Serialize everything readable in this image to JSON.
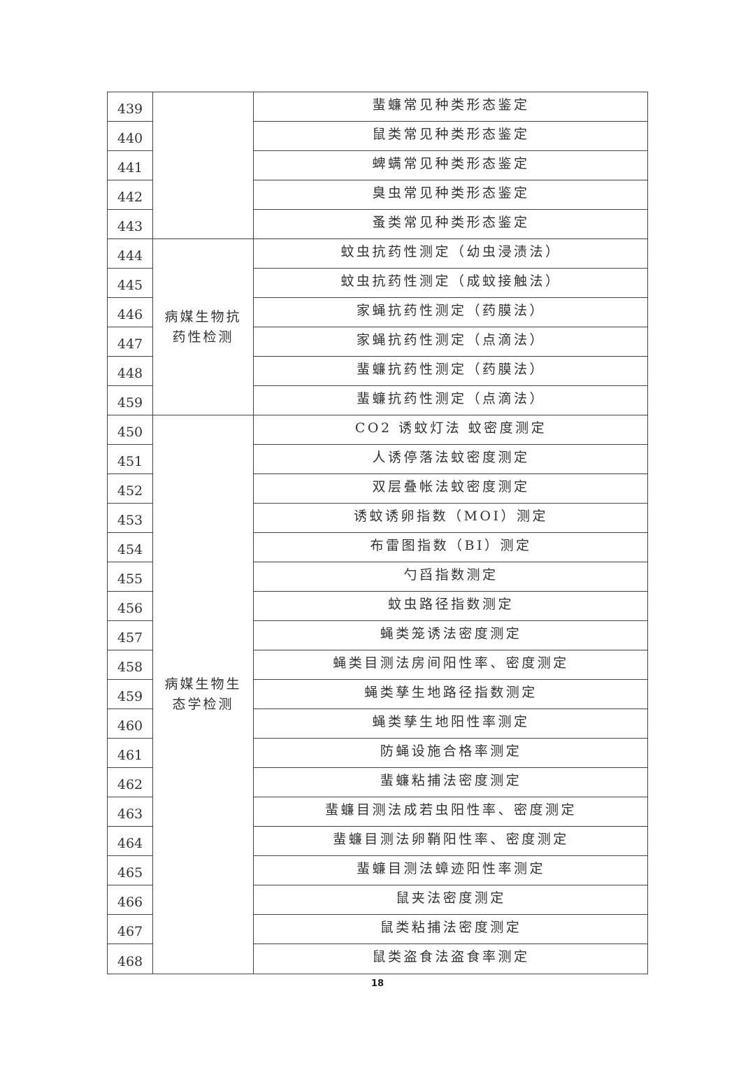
{
  "table": {
    "categories": [
      {
        "label": "",
        "rows": 5
      },
      {
        "label": "病媒生物抗药性检测",
        "rows": 6
      },
      {
        "label": "病媒生物生态学检测",
        "rows": 19
      }
    ],
    "rows": [
      {
        "no": "439",
        "item": "蜚蠊常见种类形态鉴定"
      },
      {
        "no": "440",
        "item": "鼠类常见种类形态鉴定"
      },
      {
        "no": "441",
        "item": "蜱螨常见种类形态鉴定"
      },
      {
        "no": "442",
        "item": "臭虫常见种类形态鉴定"
      },
      {
        "no": "443",
        "item": "蚤类常见种类形态鉴定"
      },
      {
        "no": "444",
        "item": "蚊虫抗药性测定（幼虫浸渍法）"
      },
      {
        "no": "445",
        "item": "蚊虫抗药性测定（成蚊接触法）"
      },
      {
        "no": "446",
        "item": "家蝇抗药性测定（药膜法）"
      },
      {
        "no": "447",
        "item": "家蝇抗药性测定（点滴法）"
      },
      {
        "no": "448",
        "item": "蜚蠊抗药性测定（药膜法）"
      },
      {
        "no": "459",
        "item": "蜚蠊抗药性测定（点滴法）"
      },
      {
        "no": "450",
        "item": "CO2 诱蚊灯法 蚊密度测定"
      },
      {
        "no": "451",
        "item": "人诱停落法蚊密度测定"
      },
      {
        "no": "452",
        "item": "双层叠帐法蚊密度测定"
      },
      {
        "no": "453",
        "item": "诱蚊诱卵指数（MOI）测定"
      },
      {
        "no": "454",
        "item": "布雷图指数（BI）测定"
      },
      {
        "no": "455",
        "item": "勺舀指数测定"
      },
      {
        "no": "456",
        "item": "蚊虫路径指数测定"
      },
      {
        "no": "457",
        "item": "蝇类笼诱法密度测定"
      },
      {
        "no": "458",
        "item": "蝇类目测法房间阳性率、密度测定"
      },
      {
        "no": "459",
        "item": "蝇类孳生地路径指数测定"
      },
      {
        "no": "460",
        "item": "蝇类孳生地阳性率测定"
      },
      {
        "no": "461",
        "item": "防蝇设施合格率测定"
      },
      {
        "no": "462",
        "item": "蜚蠊粘捕法密度测定"
      },
      {
        "no": "463",
        "item": "蜚蠊目测法成若虫阳性率、密度测定"
      },
      {
        "no": "464",
        "item": "蜚蠊目测法卵鞘阳性率、密度测定"
      },
      {
        "no": "465",
        "item": "蜚蠊目测法蟑迹阳性率测定"
      },
      {
        "no": "466",
        "item": "鼠夹法密度测定"
      },
      {
        "no": "467",
        "item": "鼠类粘捕法密度测定"
      },
      {
        "no": "468",
        "item": "鼠类盗食法盗食率测定"
      }
    ]
  },
  "footer": {
    "page_number": "18"
  }
}
